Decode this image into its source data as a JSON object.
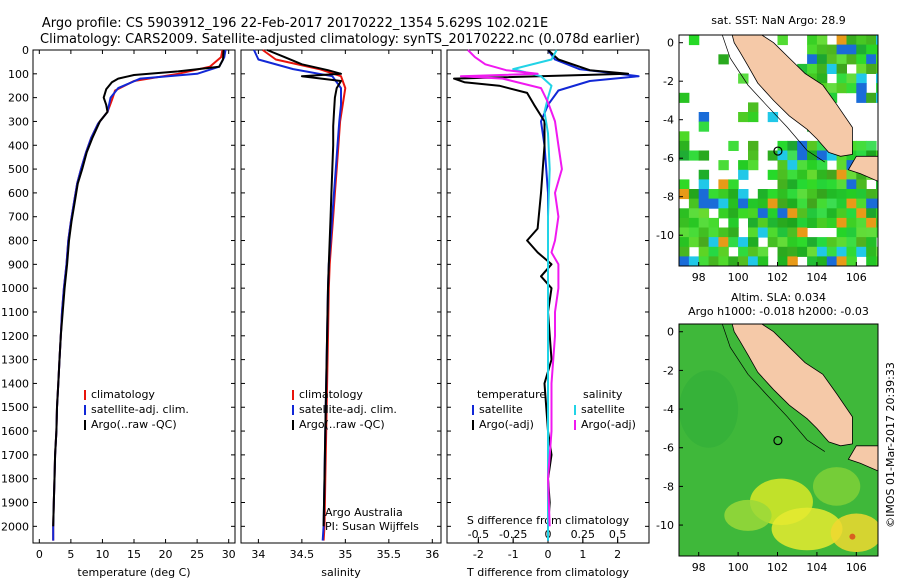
{
  "title_lines": [
    "Argo profile: CS 5903912_196 22-Feb-2017 20170222_1354 5.629S 102.021E",
    "Climatology: CARS2009. Satellite-adjusted climatology: synTS_20170222.nc (0.078d earlier)"
  ],
  "credit": "©IMOS 01-Mar-2017 20:39:33",
  "colors": {
    "climatology": "#e8140c",
    "satellite": "#1228d6",
    "argo": "#000000",
    "salinity_satellite": "#22d3e6",
    "salinity_argo": "#f019f0",
    "land": "#f5c9a8"
  },
  "chart_data": [
    {
      "type": "line",
      "name": "temperature-profile",
      "xlabel": "temperature (deg C)",
      "xlim": [
        -1,
        31
      ],
      "ylim": [
        2070,
        0
      ],
      "xticks": [
        0,
        5,
        10,
        15,
        20,
        25,
        30
      ],
      "yticks": [
        0,
        100,
        200,
        300,
        400,
        500,
        600,
        700,
        800,
        900,
        1000,
        1100,
        1200,
        1300,
        1400,
        1500,
        1600,
        1700,
        1800,
        1900,
        2000
      ],
      "legend": {
        "placement": "lower-right",
        "entries": [
          "climatology",
          "satellite-adj. clim.",
          "Argo(..raw -QC)"
        ]
      },
      "series": [
        {
          "key": "climatology",
          "points": [
            [
              29,
              0
            ],
            [
              28.8,
              30
            ],
            [
              27,
              70
            ],
            [
              22,
              100
            ],
            [
              15,
              130
            ],
            [
              12,
              170
            ],
            [
              11.5,
              210
            ],
            [
              10.8,
              260
            ],
            [
              9.3,
              310
            ],
            [
              8.2,
              370
            ],
            [
              7.4,
              430
            ],
            [
              6.6,
              500
            ],
            [
              6.0,
              560
            ],
            [
              5.5,
              640
            ],
            [
              5,
              720
            ],
            [
              4.6,
              800
            ],
            [
              4.3,
              900
            ],
            [
              3.9,
              1000
            ],
            [
              3.6,
              1100
            ],
            [
              3.4,
              1200
            ],
            [
              3.2,
              1300
            ],
            [
              3.0,
              1400
            ],
            [
              2.8,
              1500
            ],
            [
              2.7,
              1600
            ],
            [
              2.5,
              1700
            ],
            [
              2.4,
              1800
            ],
            [
              2.3,
              1900
            ],
            [
              2.2,
              2000
            ],
            [
              2.2,
              2060
            ]
          ]
        },
        {
          "key": "satellite",
          "points": [
            [
              29.5,
              0
            ],
            [
              29.3,
              30
            ],
            [
              28.5,
              70
            ],
            [
              25,
              100
            ],
            [
              16,
              120
            ],
            [
              12.5,
              160
            ],
            [
              11.3,
              200
            ],
            [
              10.8,
              260
            ],
            [
              9.3,
              310
            ],
            [
              8.2,
              370
            ],
            [
              7.4,
              430
            ],
            [
              6.6,
              500
            ],
            [
              6.0,
              560
            ],
            [
              5.5,
              640
            ],
            [
              5,
              720
            ],
            [
              4.6,
              800
            ],
            [
              4.3,
              900
            ],
            [
              3.9,
              1000
            ],
            [
              3.6,
              1100
            ],
            [
              3.4,
              1200
            ],
            [
              3.2,
              1300
            ],
            [
              3.0,
              1400
            ],
            [
              2.8,
              1500
            ],
            [
              2.7,
              1600
            ],
            [
              2.5,
              1700
            ],
            [
              2.4,
              1800
            ],
            [
              2.3,
              1900
            ],
            [
              2.2,
              2000
            ],
            [
              2.2,
              2060
            ]
          ]
        },
        {
          "key": "argo",
          "points": [
            [
              29.2,
              0
            ],
            [
              29.1,
              40
            ],
            [
              28.5,
              70
            ],
            [
              22,
              90
            ],
            [
              15,
              105
            ],
            [
              12.5,
              120
            ],
            [
              11.5,
              135
            ],
            [
              10.6,
              165
            ],
            [
              10.2,
              200
            ],
            [
              10.6,
              230
            ],
            [
              10.8,
              260
            ],
            [
              9.6,
              300
            ],
            [
              8.4,
              370
            ],
            [
              7.5,
              430
            ],
            [
              6.8,
              500
            ],
            [
              6.1,
              560
            ],
            [
              5.6,
              640
            ],
            [
              5.1,
              720
            ],
            [
              4.7,
              800
            ],
            [
              4.4,
              900
            ],
            [
              4.0,
              1000
            ],
            [
              3.7,
              1100
            ],
            [
              3.4,
              1200
            ],
            [
              3.2,
              1300
            ],
            [
              3.0,
              1400
            ],
            [
              2.8,
              1500
            ],
            [
              2.7,
              1600
            ],
            [
              2.5,
              1700
            ],
            [
              2.4,
              1800
            ],
            [
              2.3,
              1900
            ],
            [
              2.2,
              2000
            ]
          ]
        }
      ]
    },
    {
      "type": "line",
      "name": "salinity-profile",
      "xlabel": "salinity",
      "xlim": [
        33.8,
        36.1
      ],
      "ylim": [
        2070,
        0
      ],
      "xticks": [
        34,
        34.5,
        35,
        35.5,
        36
      ],
      "legend": {
        "placement": "lower-right",
        "entries": [
          "climatology",
          "satellite-adj. clim.",
          "Argo(..raw -QC)"
        ]
      },
      "annotation": [
        "Argo Australia",
        "PI: Susan Wijffels"
      ],
      "series": [
        {
          "key": "climatology",
          "points": [
            [
              34.05,
              0
            ],
            [
              34.2,
              40
            ],
            [
              34.7,
              80
            ],
            [
              34.95,
              110
            ],
            [
              35.0,
              160
            ],
            [
              34.97,
              230
            ],
            [
              34.94,
              300
            ],
            [
              34.92,
              400
            ],
            [
              34.9,
              500
            ],
            [
              34.88,
              600
            ],
            [
              34.86,
              700
            ],
            [
              34.84,
              800
            ],
            [
              34.82,
              900
            ],
            [
              34.81,
              1000
            ],
            [
              34.8,
              1200
            ],
            [
              34.79,
              1400
            ],
            [
              34.78,
              1600
            ],
            [
              34.77,
              1800
            ],
            [
              34.76,
              2000
            ],
            [
              34.75,
              2060
            ]
          ]
        },
        {
          "key": "satellite",
          "points": [
            [
              33.95,
              0
            ],
            [
              34.0,
              40
            ],
            [
              34.4,
              80
            ],
            [
              34.85,
              110
            ],
            [
              34.95,
              160
            ],
            [
              34.95,
              230
            ],
            [
              34.93,
              300
            ],
            [
              34.91,
              400
            ],
            [
              34.89,
              500
            ],
            [
              34.87,
              600
            ],
            [
              34.85,
              700
            ],
            [
              34.83,
              800
            ],
            [
              34.81,
              900
            ],
            [
              34.8,
              1000
            ],
            [
              34.79,
              1200
            ],
            [
              34.78,
              1400
            ],
            [
              34.77,
              1600
            ],
            [
              34.76,
              1800
            ],
            [
              34.75,
              2000
            ],
            [
              34.74,
              2060
            ]
          ]
        },
        {
          "key": "argo",
          "points": [
            [
              34.1,
              0
            ],
            [
              34.3,
              30
            ],
            [
              34.5,
              60
            ],
            [
              34.8,
              85
            ],
            [
              34.95,
              100
            ],
            [
              34.5,
              110
            ],
            [
              34.95,
              130
            ],
            [
              34.9,
              160
            ],
            [
              34.88,
              200
            ],
            [
              34.87,
              260
            ],
            [
              34.86,
              320
            ],
            [
              34.86,
              400
            ],
            [
              34.85,
              500
            ],
            [
              34.84,
              600
            ],
            [
              34.83,
              700
            ],
            [
              34.82,
              800
            ],
            [
              34.81,
              900
            ],
            [
              34.8,
              1000
            ],
            [
              34.79,
              1200
            ],
            [
              34.78,
              1400
            ],
            [
              34.77,
              1600
            ],
            [
              34.76,
              1800
            ],
            [
              34.75,
              2000
            ]
          ]
        }
      ]
    },
    {
      "type": "line",
      "name": "difference-profile",
      "xlabel": "T difference from climatology",
      "xlabel_top": "S difference from climatology",
      "xlim": [
        -2.9,
        2.9
      ],
      "ylim": [
        2070,
        0
      ],
      "xticks_bottom": [
        -2,
        -1,
        0,
        1,
        2
      ],
      "xticks_top": [
        -0.5,
        -0.25,
        0,
        0.25,
        0.5
      ],
      "legend": {
        "placement": "lower-center",
        "groups": [
          {
            "title": "temperature",
            "entries": [
              "satellite",
              "Argo(-adj)"
            ]
          },
          {
            "title": "salinity",
            "entries": [
              "satellite",
              "Argo(-adj)"
            ]
          }
        ]
      },
      "series": [
        {
          "key": "t_satellite",
          "points": [
            [
              0,
              0
            ],
            [
              0.2,
              40
            ],
            [
              0.9,
              80
            ],
            [
              2.6,
              110
            ],
            [
              1.2,
              130
            ],
            [
              0.3,
              170
            ],
            [
              0,
              230
            ],
            [
              -0.2,
              300
            ],
            [
              -0.1,
              400
            ],
            [
              0,
              600
            ],
            [
              0,
              1000
            ],
            [
              0,
              1400
            ],
            [
              0,
              1800
            ],
            [
              0,
              2060
            ]
          ]
        },
        {
          "key": "t_argo",
          "points": [
            [
              0,
              0
            ],
            [
              0.3,
              40
            ],
            [
              1.2,
              85
            ],
            [
              2.3,
              100
            ],
            [
              -2.7,
              120
            ],
            [
              -2.4,
              135
            ],
            [
              -1.4,
              150
            ],
            [
              -0.6,
              180
            ],
            [
              -0.4,
              230
            ],
            [
              -0.1,
              300
            ],
            [
              -0.1,
              400
            ],
            [
              -0.2,
              600
            ],
            [
              -0.3,
              750
            ],
            [
              -0.6,
              800
            ],
            [
              -0.3,
              850
            ],
            [
              0.1,
              900
            ],
            [
              -0.2,
              950
            ],
            [
              0.1,
              1000
            ],
            [
              0,
              1100
            ],
            [
              0.1,
              1300
            ],
            [
              -0.1,
              1400
            ],
            [
              0,
              1600
            ],
            [
              0.1,
              1700
            ],
            [
              0,
              1800
            ],
            [
              0.05,
              1900
            ],
            [
              0,
              2000
            ]
          ]
        },
        {
          "key": "s_satellite",
          "points": [
            [
              0.25,
              0
            ],
            [
              0.1,
              40
            ],
            [
              -1.0,
              80
            ],
            [
              -0.2,
              110
            ],
            [
              0.1,
              150
            ],
            [
              0,
              200
            ],
            [
              -0.1,
              260
            ],
            [
              0,
              350
            ],
            [
              0.05,
              500
            ],
            [
              0,
              700
            ],
            [
              0,
              1000
            ],
            [
              0,
              1400
            ],
            [
              0,
              1800
            ],
            [
              0,
              2060
            ]
          ]
        },
        {
          "key": "s_argo",
          "points": [
            [
              -2.3,
              0
            ],
            [
              -2.1,
              30
            ],
            [
              -1.8,
              60
            ],
            [
              -1.2,
              85
            ],
            [
              -0.3,
              100
            ],
            [
              -2.5,
              110
            ],
            [
              -1.3,
              120
            ],
            [
              -0.2,
              160
            ],
            [
              0,
              220
            ],
            [
              0.2,
              300
            ],
            [
              0.3,
              400
            ],
            [
              0.4,
              500
            ],
            [
              0.2,
              600
            ],
            [
              0.3,
              700
            ],
            [
              0.2,
              800
            ],
            [
              0.1,
              850
            ],
            [
              0.3,
              900
            ],
            [
              0.3,
              1000
            ],
            [
              0.2,
              1100
            ],
            [
              0.2,
              1200
            ],
            [
              0.1,
              1400
            ],
            [
              0.1,
              1600
            ],
            [
              0,
              1800
            ],
            [
              0.05,
              2000
            ]
          ]
        }
      ]
    },
    {
      "type": "heatmap",
      "name": "sst-map",
      "title": "sat. SST: NaN Argo: 28.9",
      "xlim": [
        97,
        107.1
      ],
      "ylim": [
        -11.6,
        0.4
      ],
      "xticks": [
        98,
        100,
        102,
        104,
        106
      ],
      "yticks": [
        0,
        -2,
        -4,
        -6,
        -8,
        -10
      ],
      "argo_position": [
        102.021,
        -5.629
      ]
    },
    {
      "type": "heatmap",
      "name": "sla-map",
      "title_lines": [
        "Altim. SLA: 0.034",
        "Argo h1000: -0.018 h2000: -0.03"
      ],
      "xlim": [
        97,
        107.1
      ],
      "ylim": [
        -11.6,
        0.4
      ],
      "xticks": [
        98,
        100,
        102,
        104,
        106
      ],
      "yticks": [
        0,
        -2,
        -4,
        -6,
        -8,
        -10
      ],
      "argo_position": [
        102.021,
        -5.629
      ]
    }
  ]
}
